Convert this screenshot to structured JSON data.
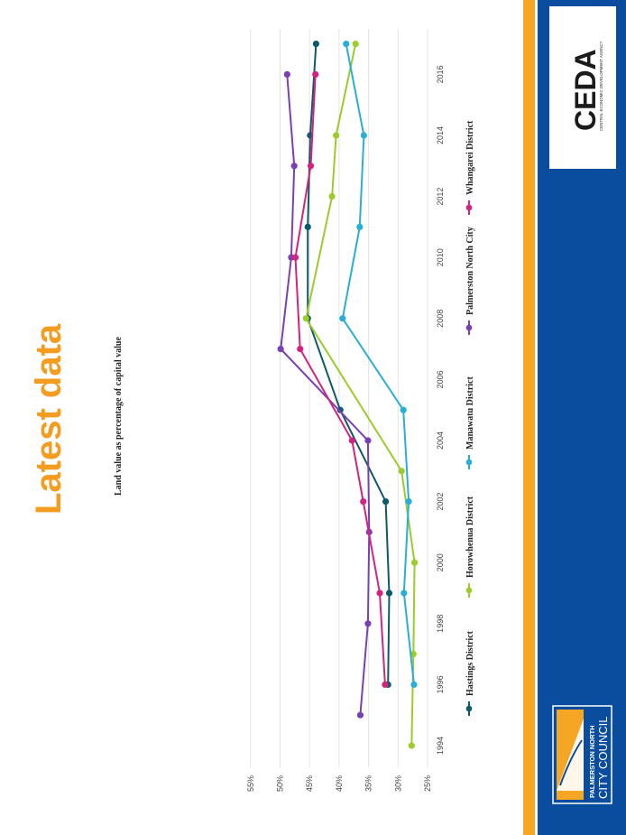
{
  "slide": {
    "title": "Latest data",
    "colors": {
      "side_band": "#0a4d9e",
      "accent_stripe": "#f5a623",
      "title": "#f39c1f"
    }
  },
  "logos": {
    "ceda": {
      "text": "CEDA",
      "subtitle": "CENTRAL ECONOMIC DEVELOPMENT AGENCY"
    },
    "council": {
      "line1": "PALMERSTON NORTH",
      "line2": "CITY COUNCIL"
    }
  },
  "chart_data": {
    "type": "line",
    "title": "Land value as percentage of capital value",
    "xlabel": "",
    "ylabel": "",
    "xlim": [
      1993.5,
      2017.5
    ],
    "ylim": [
      0.25,
      0.55
    ],
    "xticks": [
      1994,
      1996,
      1998,
      2000,
      2002,
      2004,
      2006,
      2008,
      2010,
      2012,
      2014,
      2016
    ],
    "yticks": [
      "25%",
      "30%",
      "35%",
      "40%",
      "45%",
      "50%",
      "55%"
    ],
    "grid": true,
    "legend": "bottom",
    "series": [
      {
        "name": "Hastings District",
        "color": "#0e5a6b",
        "x": [
          1996,
          1999,
          2002,
          2005,
          2008,
          2011,
          2014,
          2017
        ],
        "y": [
          0.317,
          0.315,
          0.321,
          0.398,
          0.453,
          0.453,
          0.449,
          0.439
        ]
      },
      {
        "name": "Horowhenua District",
        "color": "#9bcc2a",
        "x": [
          1994,
          1997,
          2000,
          2003,
          2008,
          2012,
          2014,
          2017
        ],
        "y": [
          0.277,
          0.274,
          0.272,
          0.294,
          0.456,
          0.412,
          0.405,
          0.372
        ]
      },
      {
        "name": "Manawatu District",
        "color": "#29aed8",
        "x": [
          1996,
          1999,
          2002,
          2005,
          2008,
          2011,
          2014,
          2017
        ],
        "y": [
          0.273,
          0.29,
          0.282,
          0.291,
          0.394,
          0.365,
          0.358,
          0.388
        ]
      },
      {
        "name": "Palmerston North City",
        "color": "#7b3fb5",
        "x": [
          1995,
          1998,
          2001,
          2004,
          2007,
          2010,
          2013,
          2016
        ],
        "y": [
          0.364,
          0.351,
          0.349,
          0.351,
          0.499,
          0.481,
          0.476,
          0.488
        ]
      },
      {
        "name": "Whangarei District",
        "color": "#d4237f",
        "x": [
          1996,
          1999,
          2002,
          2004,
          2007,
          2010,
          2013,
          2016
        ],
        "y": [
          0.322,
          0.331,
          0.359,
          0.378,
          0.466,
          0.474,
          0.448,
          0.44
        ]
      }
    ]
  }
}
